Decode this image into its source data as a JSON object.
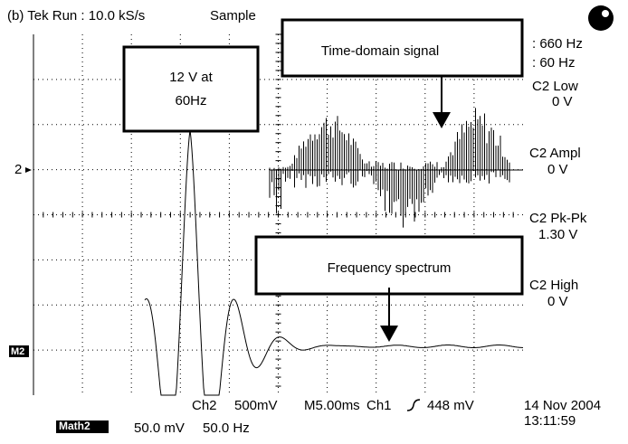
{
  "header": {
    "title": "(b) Tek Run : 10.0 kS/s",
    "mode": "Sample"
  },
  "readouts": [
    ": 660 Hz",
    ": 60 Hz"
  ],
  "measurements": [
    {
      "label": "C2 Low",
      "value": "0 V"
    },
    {
      "label": "C2 Ampl",
      "value": "0 V"
    },
    {
      "label": "C2 Pk-Pk",
      "value": "1.30 V"
    },
    {
      "label": "C2 High",
      "value": "0 V"
    }
  ],
  "annotations": {
    "peak": [
      "12 V at",
      "60Hz"
    ],
    "time_domain": "Time-domain signal",
    "spectrum": "Frequency spectrum"
  },
  "markers": {
    "ch2": "2",
    "math2": "M2"
  },
  "status": {
    "channel": "Ch2",
    "scale": "500mV",
    "timebase": "M5.00ms",
    "trigger_source": "Ch1",
    "trigger_level": "448 mV",
    "date": "14 Nov 2004",
    "time": "13:11:59",
    "math_label": "Math2",
    "math_scale": "50.0 mV",
    "math_freq": "50.0 Hz"
  }
}
